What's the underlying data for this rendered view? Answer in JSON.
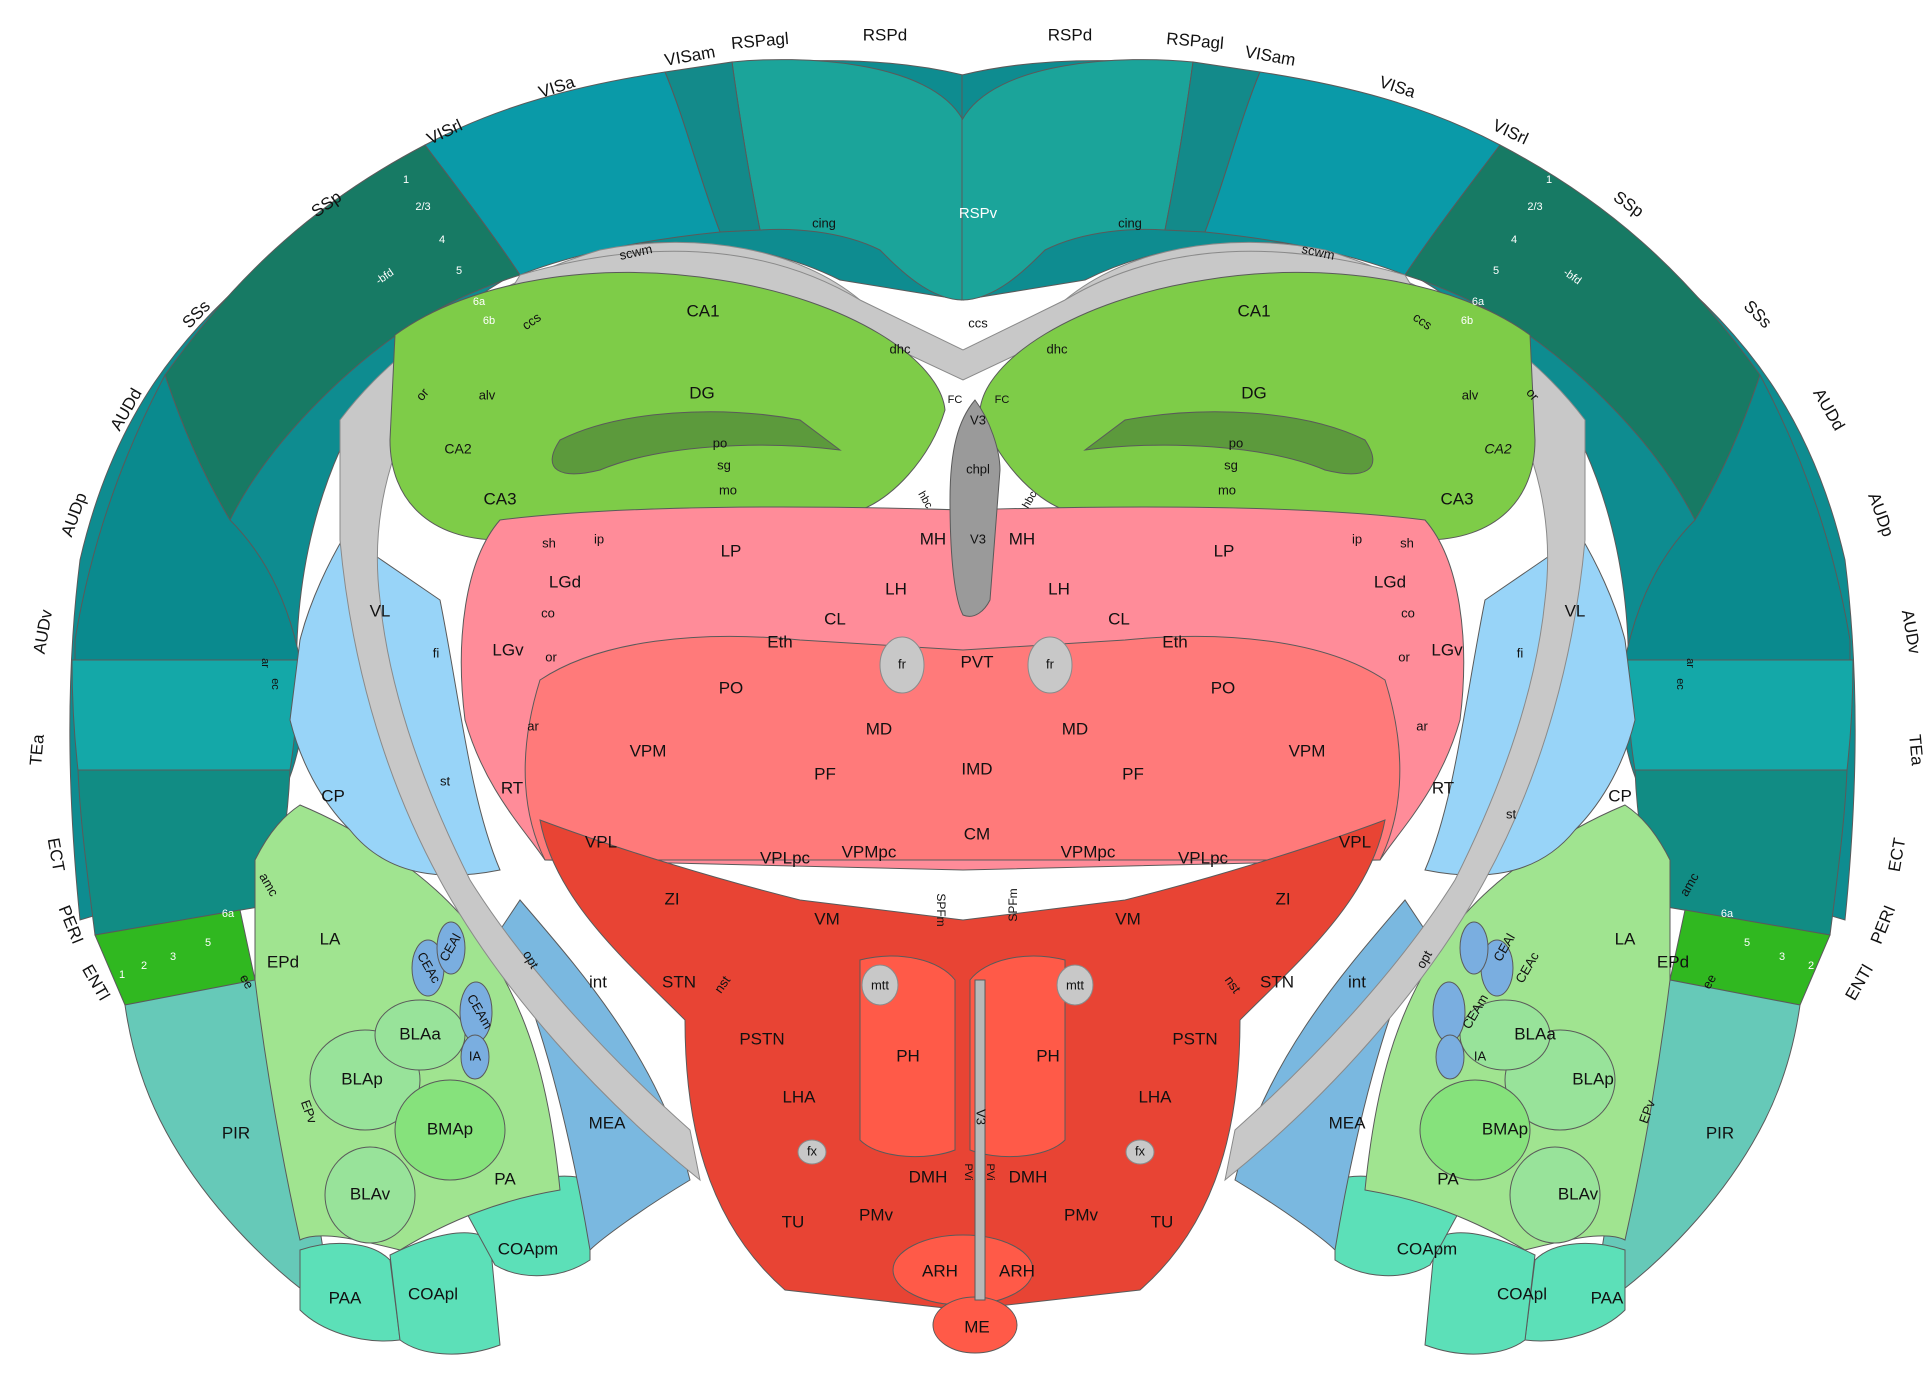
{
  "colors": {
    "isocortex_dark": "#1a7a6a",
    "isocortex_mid": "#0e8c90",
    "visual": "#0a9aa8",
    "retrosplenial": "#1ba49a",
    "ssp": "#177a64",
    "aud": "#0a8a8e",
    "tea": "#14a8a8",
    "ect": "#118c84",
    "ent": "#30b820",
    "pir": "#66c9b8",
    "olfactory": "#5ce0b8",
    "hippocampus": "#7ecc48",
    "dg_layer": "#5c9a3c",
    "thalamus": "#ff8c99",
    "thalamus_dark": "#ff7a7a",
    "hypothalamus": "#e84434",
    "hypothalamus_light": "#ff5a48",
    "striatum": "#98d4f8",
    "pallidum_med": "#7ab8e0",
    "cea": "#7aaee0",
    "amygdala": "#a0e490",
    "bla": "#98e39a",
    "tracts": "#c8c8c8",
    "ventricle": "#9a9a9a"
  },
  "rim_labels": {
    "VISam": "VISam",
    "RSPagl": "RSPagl",
    "RSPd": "RSPd",
    "VISa": "VISa",
    "VISrl": "VISrl",
    "SSp": "SSp",
    "SSs": "SSs",
    "AUDd": "AUDd",
    "AUDp": "AUDp",
    "AUDv": "AUDv",
    "TEa": "TEa",
    "ECT": "ECT",
    "PERI": "PERI",
    "ENTl": "ENTl"
  },
  "layers": {
    "l1": "1",
    "l23": "2/3",
    "l4": "4",
    "l5": "5",
    "bfd": "-bfd",
    "l6a": "6a",
    "l6b": "6b",
    "l2": "2",
    "l3": "3"
  },
  "regions": {
    "RSPv": "RSPv",
    "cing": "cing",
    "scwm": "scwm",
    "ccs": "ccs",
    "dhc": "dhc",
    "or": "or",
    "alv": "alv",
    "CA1": "CA1",
    "DG": "DG",
    "CA2": "CA2",
    "CA3": "CA3",
    "po": "po",
    "sg": "sg",
    "mo": "mo",
    "FC": "FC",
    "V3": "V3",
    "chpl": "chpl",
    "hbc": "hbc",
    "MH": "MH",
    "LH": "LH",
    "PVT": "PVT",
    "fr": "fr",
    "IMD": "IMD",
    "MD": "MD",
    "CL": "CL",
    "Eth": "Eth",
    "PO": "PO",
    "LP": "LP",
    "LGd": "LGd",
    "LGv": "LGv",
    "sh": "sh",
    "ip": "ip",
    "co": "co",
    "VL": "VL",
    "fi": "fi",
    "RT": "RT",
    "ar": "ar",
    "ec": "ec",
    "st": "st",
    "VPM": "VPM",
    "VPL": "VPL",
    "PF": "PF",
    "CM": "CM",
    "VPMpc": "VPMpc",
    "VPLpc": "VPLpc",
    "ZI": "ZI",
    "VM": "VM",
    "SPFm": "SPFm",
    "STN": "STN",
    "nst": "nst",
    "mtt": "mtt",
    "PSTN": "PSTN",
    "PH": "PH",
    "LHA": "LHA",
    "fx": "fx",
    "DMH": "DMH",
    "PVi": "PVi",
    "TU": "TU",
    "PMv": "PMv",
    "ARH": "ARH",
    "ME": "ME",
    "CP": "CP",
    "amc": "amc",
    "LA": "LA",
    "EPd": "EPd",
    "ee": "ee",
    "CEAc": "CEAc",
    "CEAl": "CEAl",
    "CEAm": "CEAm",
    "IA": "IA",
    "BLAa": "BLAa",
    "BLAp": "BLAp",
    "BMAp": "BMAp",
    "EPv": "EPv",
    "BLAv": "BLAv",
    "PA": "PA",
    "MEA": "MEA",
    "opt": "opt",
    "int": "int",
    "COApm": "COApm",
    "COApl": "COApl",
    "PAA": "PAA",
    "PIR": "PIR"
  }
}
